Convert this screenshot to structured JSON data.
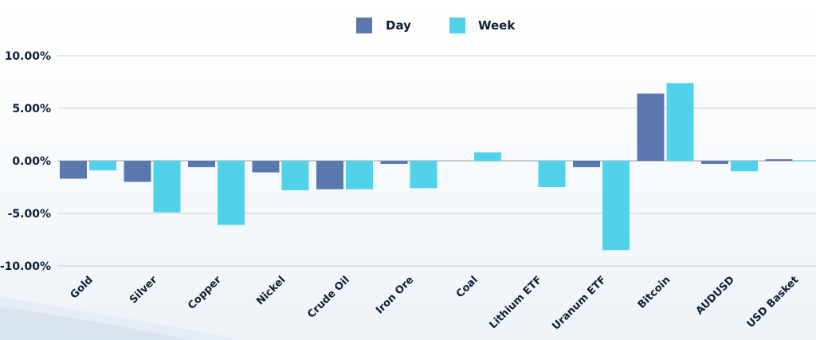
{
  "chart_data": {
    "type": "bar",
    "categories": [
      "Gold",
      "Silver",
      "Copper",
      "Nickel",
      "Crude Oil",
      "Iron Ore",
      "Coal",
      "Lithium ETF",
      "Uranum ETF",
      "Bitcoin",
      "AUDUSD",
      "USD Basket"
    ],
    "series": [
      {
        "name": "Day",
        "color": "#5a78b0",
        "values": [
          -1.7,
          -2.0,
          -0.6,
          -1.1,
          -2.7,
          -0.3,
          0.0,
          0.0,
          -0.6,
          6.4,
          -0.3,
          0.15
        ]
      },
      {
        "name": "Week",
        "color": "#4fd2ea",
        "values": [
          -0.9,
          -4.9,
          -6.1,
          -2.8,
          -2.7,
          -2.6,
          0.8,
          -2.5,
          -8.5,
          7.4,
          -1.0,
          0.05
        ]
      }
    ],
    "yticks": [
      "10.00%",
      "5.00%",
      "0.00%",
      "-5.00%",
      "-10.00%"
    ],
    "ytick_values": [
      10,
      5,
      0,
      -5,
      -10
    ],
    "ylim": [
      -10,
      10
    ],
    "grid": true,
    "legend_position": "top-center"
  }
}
